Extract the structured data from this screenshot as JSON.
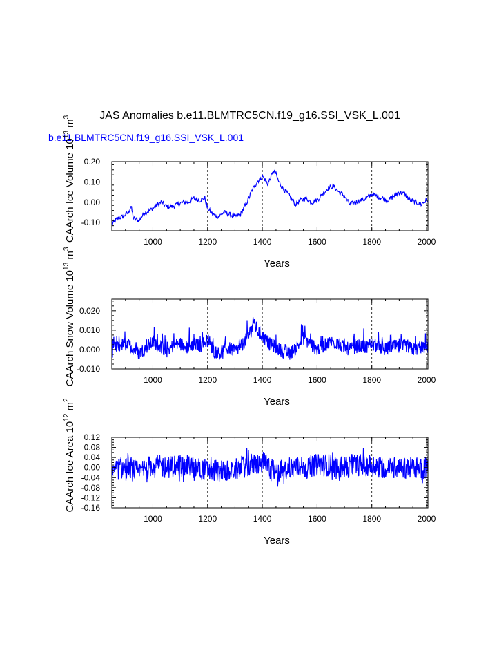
{
  "title": "JAS Anomalies b.e11.BLMTRC5CN.f19_g16.SSI_VSK_L.001",
  "legend_label": "b.e11.BLMTRC5CN.f19_g16.SSI_VSK_L.001",
  "colors": {
    "series": "#0000ff",
    "axis": "#000000",
    "grid": "#000000"
  },
  "chart_data": [
    {
      "type": "line",
      "xlabel": "Years",
      "ylabel": "CAArch Ice Volume 10",
      "ylabel_sup": "13",
      "ylabel_unit": "m",
      "ylabel_unit_sup": "3",
      "xlim": [
        850,
        2005
      ],
      "ylim": [
        -0.14,
        0.2
      ],
      "xticks": [
        1000,
        1200,
        1400,
        1600,
        1800,
        2000
      ],
      "yticks": [
        -0.1,
        0.0,
        0.1,
        0.2
      ],
      "ytick_labels": [
        "-0.10",
        "0.00",
        "0.10",
        "0.20"
      ],
      "grid_x": true,
      "series": [
        {
          "x": [
            850,
            870,
            890,
            910,
            920,
            930,
            950,
            970,
            990,
            1010,
            1030,
            1050,
            1070,
            1090,
            1110,
            1130,
            1150,
            1170,
            1190,
            1200,
            1220,
            1240,
            1260,
            1280,
            1300,
            1320,
            1340,
            1360,
            1380,
            1395,
            1400,
            1410,
            1420,
            1430,
            1440,
            1450,
            1460,
            1480,
            1500,
            1520,
            1540,
            1560,
            1580,
            1600,
            1620,
            1640,
            1660,
            1680,
            1700,
            1720,
            1740,
            1760,
            1780,
            1800,
            1820,
            1840,
            1860,
            1880,
            1900,
            1920,
            1940,
            1960,
            1980,
            2000,
            2005
          ],
          "y": [
            -0.11,
            -0.08,
            -0.07,
            -0.05,
            -0.02,
            -0.08,
            -0.09,
            -0.05,
            -0.04,
            -0.02,
            0.0,
            -0.02,
            -0.02,
            -0.01,
            0.0,
            0.0,
            0.02,
            0.01,
            0.02,
            -0.03,
            -0.06,
            -0.07,
            -0.05,
            -0.06,
            -0.07,
            -0.06,
            -0.01,
            0.05,
            0.1,
            0.12,
            0.13,
            0.11,
            0.09,
            0.12,
            0.15,
            0.14,
            0.1,
            0.06,
            0.03,
            -0.01,
            0.01,
            0.02,
            0.0,
            0.01,
            0.04,
            0.07,
            0.08,
            0.05,
            0.03,
            -0.01,
            0.0,
            0.01,
            0.02,
            0.04,
            0.03,
            0.02,
            0.01,
            0.03,
            0.05,
            0.04,
            0.01,
            0.0,
            -0.01,
            0.01,
            0.01
          ]
        }
      ]
    },
    {
      "type": "line",
      "xlabel": "Years",
      "ylabel": "CAArch Snow Volume 10",
      "ylabel_sup": "13",
      "ylabel_unit": "m",
      "ylabel_unit_sup": "3",
      "xlim": [
        850,
        2005
      ],
      "ylim": [
        -0.01,
        0.026
      ],
      "xticks": [
        1000,
        1200,
        1400,
        1600,
        1800,
        2000
      ],
      "yticks": [
        -0.01,
        0.0,
        0.01,
        0.02
      ],
      "ytick_labels": [
        "-0.010",
        "0.000",
        "0.010",
        "0.020"
      ],
      "grid_x": true,
      "series": [
        {
          "x": [
            850,
            875,
            900,
            925,
            950,
            975,
            1000,
            1025,
            1050,
            1075,
            1100,
            1125,
            1150,
            1175,
            1200,
            1225,
            1250,
            1275,
            1300,
            1325,
            1345,
            1360,
            1368,
            1375,
            1385,
            1400,
            1425,
            1450,
            1475,
            1500,
            1525,
            1550,
            1575,
            1600,
            1625,
            1650,
            1675,
            1700,
            1725,
            1750,
            1775,
            1800,
            1825,
            1850,
            1875,
            1900,
            1925,
            1950,
            1975,
            2000,
            2005
          ],
          "y": [
            -0.001,
            0.002,
            0.003,
            0.001,
            -0.002,
            0.001,
            0.004,
            0.002,
            -0.001,
            0.002,
            0.003,
            0.001,
            0.003,
            0.002,
            0.005,
            -0.001,
            -0.002,
            0.001,
            -0.001,
            0.002,
            0.006,
            0.01,
            0.015,
            0.012,
            0.009,
            0.007,
            0.003,
            0.001,
            -0.001,
            -0.002,
            0.001,
            0.006,
            0.003,
            0.0,
            0.002,
            0.004,
            0.003,
            0.001,
            0.0,
            0.002,
            0.001,
            0.003,
            0.001,
            0.0,
            0.002,
            0.001,
            0.002,
            0.0,
            0.001,
            0.0,
            0.0
          ]
        }
      ]
    },
    {
      "type": "line",
      "xlabel": "Years",
      "ylabel": "CAArch Ice Area 10",
      "ylabel_sup": "12",
      "ylabel_unit": "m",
      "ylabel_unit_sup": "2",
      "xlim": [
        850,
        2005
      ],
      "ylim": [
        -0.16,
        0.12
      ],
      "xticks": [
        1000,
        1200,
        1400,
        1600,
        1800,
        2000
      ],
      "yticks": [
        -0.16,
        -0.12,
        -0.08,
        -0.04,
        0.0,
        0.04,
        0.08,
        0.12
      ],
      "ytick_labels": [
        "-0.16",
        "-0.12",
        "-0.08",
        "-0.04",
        "0.00",
        "0.04",
        "0.08",
        "0.12"
      ],
      "grid_x": true,
      "series": [
        {
          "x": [
            850,
            900,
            950,
            1000,
            1050,
            1100,
            1150,
            1200,
            1250,
            1300,
            1350,
            1400,
            1450,
            1500,
            1550,
            1600,
            1650,
            1700,
            1750,
            1800,
            1850,
            1900,
            1950,
            2000,
            2005
          ],
          "y": [
            -0.01,
            0.0,
            -0.02,
            0.01,
            0.0,
            0.01,
            0.0,
            -0.01,
            -0.01,
            -0.01,
            0.01,
            0.02,
            -0.02,
            0.0,
            0.0,
            0.01,
            0.01,
            0.0,
            0.01,
            0.01,
            0.0,
            0.0,
            0.0,
            0.0,
            0.0
          ]
        }
      ]
    }
  ]
}
